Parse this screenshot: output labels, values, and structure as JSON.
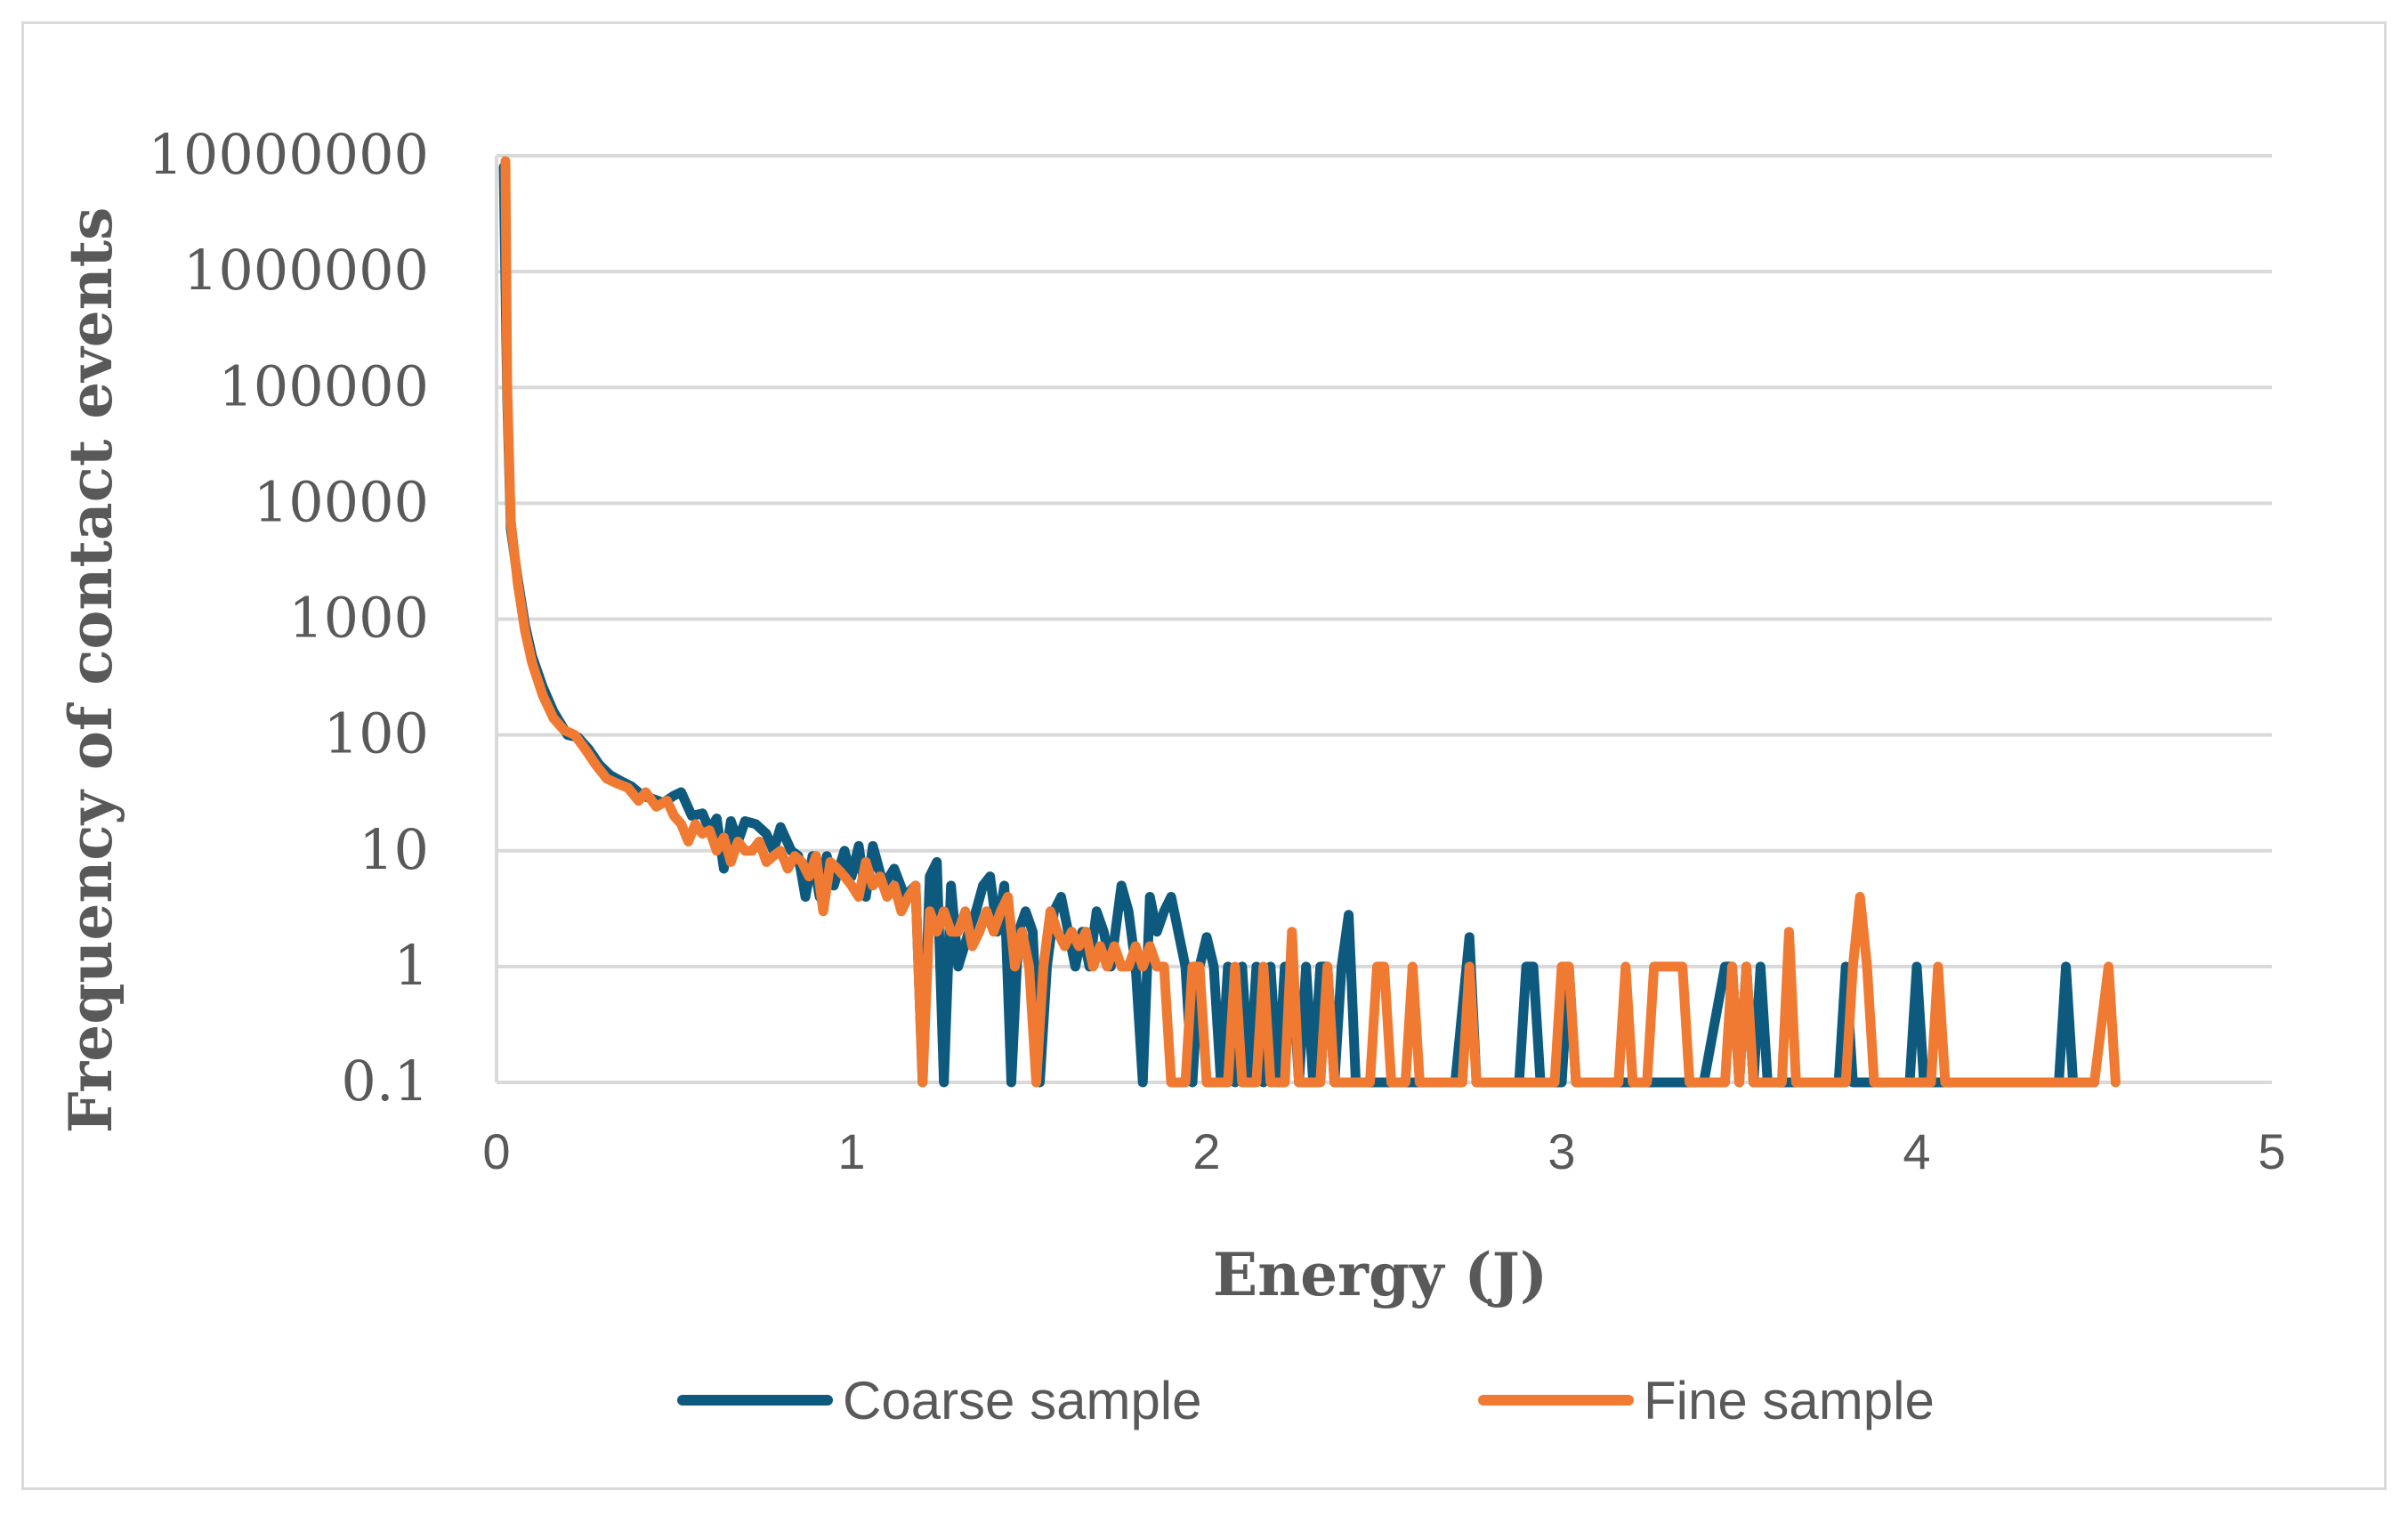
{
  "chart_data": {
    "type": "line",
    "title": "",
    "xlabel": "Energy (J)",
    "ylabel": "Frequency of contact events",
    "xlim": [
      0,
      5
    ],
    "ylim": [
      0.1,
      10000000
    ],
    "yscale": "log",
    "grid": true,
    "legend_position": "bottom",
    "x_ticks": [
      "0",
      "1",
      "2",
      "3",
      "4",
      "5"
    ],
    "x_tick_values": [
      0,
      1,
      2,
      3,
      4,
      5
    ],
    "y_ticks": [
      "0.1",
      "1",
      "10",
      "100",
      "1000",
      "10000",
      "100000",
      "1000000",
      "10000000"
    ],
    "y_tick_values": [
      0.1,
      1,
      10,
      100,
      1000,
      10000,
      100000,
      1000000,
      10000000
    ],
    "colors": {
      "coarse": "#0e5a7e",
      "fine": "#f07a32",
      "grid": "#d9d9d9",
      "text": "#595959"
    },
    "series": [
      {
        "name": "Coarse sample",
        "color": "#0e5a7e",
        "points": [
          [
            0.02,
            8000000
          ],
          [
            0.03,
            80000
          ],
          [
            0.04,
            6000
          ],
          [
            0.06,
            2200
          ],
          [
            0.08,
            900
          ],
          [
            0.1,
            480
          ],
          [
            0.13,
            260
          ],
          [
            0.16,
            160
          ],
          [
            0.2,
            100
          ],
          [
            0.23,
            95
          ],
          [
            0.26,
            75
          ],
          [
            0.29,
            55
          ],
          [
            0.32,
            45
          ],
          [
            0.35,
            40
          ],
          [
            0.38,
            36
          ],
          [
            0.41,
            30
          ],
          [
            0.44,
            28
          ],
          [
            0.47,
            26
          ],
          [
            0.5,
            30
          ],
          [
            0.52,
            32
          ],
          [
            0.55,
            20
          ],
          [
            0.58,
            21
          ],
          [
            0.6,
            15
          ],
          [
            0.62,
            19
          ],
          [
            0.64,
            7
          ],
          [
            0.66,
            18
          ],
          [
            0.68,
            12
          ],
          [
            0.7,
            18
          ],
          [
            0.73,
            17
          ],
          [
            0.76,
            14
          ],
          [
            0.78,
            10
          ],
          [
            0.8,
            16
          ],
          [
            0.83,
            10
          ],
          [
            0.85,
            9
          ],
          [
            0.87,
            4
          ],
          [
            0.89,
            9
          ],
          [
            0.91,
            4
          ],
          [
            0.93,
            9
          ],
          [
            0.95,
            5
          ],
          [
            0.98,
            10
          ],
          [
            1.0,
            6
          ],
          [
            1.02,
            11
          ],
          [
            1.04,
            4
          ],
          [
            1.06,
            11
          ],
          [
            1.09,
            5
          ],
          [
            1.12,
            7
          ],
          [
            1.15,
            4
          ],
          [
            1.18,
            5
          ],
          [
            1.2,
            0.1
          ],
          [
            1.22,
            6
          ],
          [
            1.24,
            8
          ],
          [
            1.26,
            0.1
          ],
          [
            1.28,
            5
          ],
          [
            1.3,
            1
          ],
          [
            1.33,
            2
          ],
          [
            1.35,
            3
          ],
          [
            1.37,
            5
          ],
          [
            1.39,
            6
          ],
          [
            1.41,
            2
          ],
          [
            1.43,
            5
          ],
          [
            1.45,
            0.1
          ],
          [
            1.47,
            2
          ],
          [
            1.49,
            3
          ],
          [
            1.51,
            2
          ],
          [
            1.53,
            0.1
          ],
          [
            1.55,
            1
          ],
          [
            1.57,
            3
          ],
          [
            1.59,
            4
          ],
          [
            1.61,
            2
          ],
          [
            1.63,
            1
          ],
          [
            1.65,
            2
          ],
          [
            1.67,
            1
          ],
          [
            1.69,
            3
          ],
          [
            1.71,
            2
          ],
          [
            1.73,
            1
          ],
          [
            1.76,
            5
          ],
          [
            1.78,
            3
          ],
          [
            1.8,
            1
          ],
          [
            1.82,
            0.1
          ],
          [
            1.84,
            4
          ],
          [
            1.86,
            2
          ],
          [
            1.88,
            3
          ],
          [
            1.9,
            4
          ],
          [
            1.92,
            2
          ],
          [
            1.94,
            1
          ],
          [
            1.96,
            0.1
          ],
          [
            1.98,
            1
          ],
          [
            2.0,
            1.8
          ],
          [
            2.02,
            1
          ],
          [
            2.04,
            0.1
          ],
          [
            2.06,
            1
          ],
          [
            2.08,
            0.1
          ],
          [
            2.1,
            1
          ],
          [
            2.12,
            0.1
          ],
          [
            2.14,
            1
          ],
          [
            2.16,
            0.1
          ],
          [
            2.18,
            1
          ],
          [
            2.2,
            0.1
          ],
          [
            2.22,
            1
          ],
          [
            2.24,
            1
          ],
          [
            2.26,
            0.1
          ],
          [
            2.28,
            1
          ],
          [
            2.3,
            0.1
          ],
          [
            2.32,
            1
          ],
          [
            2.34,
            1
          ],
          [
            2.36,
            0.1
          ],
          [
            2.38,
            1
          ],
          [
            2.4,
            2.8
          ],
          [
            2.42,
            0.1
          ],
          [
            2.5,
            0.1
          ],
          [
            2.52,
            0.1
          ],
          [
            2.7,
            0.1
          ],
          [
            2.74,
            1.8
          ],
          [
            2.76,
            0.1
          ],
          [
            2.88,
            0.1
          ],
          [
            2.9,
            1
          ],
          [
            2.92,
            1
          ],
          [
            2.94,
            0.1
          ],
          [
            3.0,
            0.1
          ],
          [
            3.02,
            1
          ],
          [
            3.04,
            0.1
          ],
          [
            3.18,
            0.1
          ],
          [
            3.2,
            0.1
          ],
          [
            3.4,
            0.1
          ],
          [
            3.46,
            1
          ],
          [
            3.48,
            1
          ],
          [
            3.5,
            0.1
          ],
          [
            3.52,
            1
          ],
          [
            3.54,
            0.1
          ],
          [
            3.56,
            1
          ],
          [
            3.58,
            0.1
          ],
          [
            3.78,
            0.1
          ],
          [
            3.8,
            1
          ],
          [
            3.82,
            0.1
          ],
          [
            3.84,
            0.1
          ],
          [
            3.98,
            0.1
          ],
          [
            4.0,
            1
          ],
          [
            4.02,
            0.1
          ],
          [
            4.4,
            0.1
          ],
          [
            4.42,
            1
          ],
          [
            4.44,
            0.1
          ],
          [
            4.5,
            0.1
          ]
        ]
      },
      {
        "name": "Fine sample",
        "color": "#f07a32",
        "points": [
          [
            0.025,
            9000000
          ],
          [
            0.03,
            100000
          ],
          [
            0.04,
            7000
          ],
          [
            0.06,
            2000
          ],
          [
            0.08,
            800
          ],
          [
            0.1,
            420
          ],
          [
            0.13,
            220
          ],
          [
            0.16,
            140
          ],
          [
            0.19,
            110
          ],
          [
            0.22,
            100
          ],
          [
            0.25,
            75
          ],
          [
            0.28,
            55
          ],
          [
            0.31,
            42
          ],
          [
            0.34,
            38
          ],
          [
            0.37,
            35
          ],
          [
            0.4,
            27
          ],
          [
            0.42,
            32
          ],
          [
            0.45,
            24
          ],
          [
            0.48,
            27
          ],
          [
            0.5,
            20
          ],
          [
            0.52,
            17
          ],
          [
            0.54,
            12
          ],
          [
            0.56,
            17
          ],
          [
            0.58,
            14
          ],
          [
            0.6,
            15
          ],
          [
            0.62,
            10
          ],
          [
            0.64,
            13
          ],
          [
            0.66,
            8
          ],
          [
            0.68,
            12
          ],
          [
            0.7,
            10
          ],
          [
            0.72,
            10
          ],
          [
            0.74,
            12
          ],
          [
            0.76,
            8
          ],
          [
            0.78,
            9
          ],
          [
            0.8,
            10
          ],
          [
            0.82,
            7
          ],
          [
            0.84,
            9
          ],
          [
            0.86,
            8
          ],
          [
            0.88,
            6
          ],
          [
            0.9,
            9
          ],
          [
            0.92,
            3
          ],
          [
            0.94,
            8
          ],
          [
            0.96,
            7
          ],
          [
            0.98,
            6
          ],
          [
            1.0,
            5
          ],
          [
            1.02,
            4
          ],
          [
            1.04,
            8
          ],
          [
            1.06,
            5
          ],
          [
            1.08,
            6
          ],
          [
            1.1,
            4
          ],
          [
            1.12,
            5
          ],
          [
            1.14,
            3
          ],
          [
            1.16,
            4
          ],
          [
            1.18,
            5
          ],
          [
            1.2,
            0.1
          ],
          [
            1.22,
            3
          ],
          [
            1.24,
            2
          ],
          [
            1.26,
            3
          ],
          [
            1.28,
            2
          ],
          [
            1.3,
            2
          ],
          [
            1.32,
            3
          ],
          [
            1.34,
            1.5
          ],
          [
            1.36,
            2
          ],
          [
            1.38,
            3
          ],
          [
            1.4,
            2
          ],
          [
            1.42,
            3
          ],
          [
            1.44,
            4
          ],
          [
            1.46,
            1
          ],
          [
            1.48,
            2
          ],
          [
            1.5,
            1
          ],
          [
            1.52,
            0.1
          ],
          [
            1.54,
            1
          ],
          [
            1.56,
            3
          ],
          [
            1.58,
            2
          ],
          [
            1.6,
            1.5
          ],
          [
            1.62,
            2
          ],
          [
            1.64,
            1.5
          ],
          [
            1.66,
            2
          ],
          [
            1.68,
            1
          ],
          [
            1.7,
            1.5
          ],
          [
            1.72,
            1
          ],
          [
            1.74,
            1.5
          ],
          [
            1.76,
            1
          ],
          [
            1.78,
            1
          ],
          [
            1.8,
            1.5
          ],
          [
            1.82,
            1
          ],
          [
            1.84,
            1.5
          ],
          [
            1.86,
            1
          ],
          [
            1.88,
            1
          ],
          [
            1.9,
            0.1
          ],
          [
            1.94,
            0.1
          ],
          [
            1.96,
            1
          ],
          [
            1.98,
            1
          ],
          [
            2.0,
            0.1
          ],
          [
            2.06,
            0.1
          ],
          [
            2.08,
            1
          ],
          [
            2.1,
            0.1
          ],
          [
            2.14,
            0.1
          ],
          [
            2.16,
            1
          ],
          [
            2.18,
            0.1
          ],
          [
            2.22,
            0.1
          ],
          [
            2.24,
            2
          ],
          [
            2.26,
            0.1
          ],
          [
            2.32,
            0.1
          ],
          [
            2.34,
            1
          ],
          [
            2.36,
            0.1
          ],
          [
            2.46,
            0.1
          ],
          [
            2.48,
            1
          ],
          [
            2.5,
            1
          ],
          [
            2.52,
            0.1
          ],
          [
            2.56,
            0.1
          ],
          [
            2.58,
            1
          ],
          [
            2.6,
            0.1
          ],
          [
            2.72,
            0.1
          ],
          [
            2.74,
            1
          ],
          [
            2.76,
            0.1
          ],
          [
            2.98,
            0.1
          ],
          [
            3.0,
            1
          ],
          [
            3.02,
            1
          ],
          [
            3.04,
            0.1
          ],
          [
            3.16,
            0.1
          ],
          [
            3.18,
            1
          ],
          [
            3.2,
            0.1
          ],
          [
            3.24,
            0.1
          ],
          [
            3.26,
            1
          ],
          [
            3.34,
            1
          ],
          [
            3.36,
            0.1
          ],
          [
            3.46,
            0.1
          ],
          [
            3.48,
            1
          ],
          [
            3.5,
            0.1
          ],
          [
            3.52,
            1
          ],
          [
            3.54,
            0.1
          ],
          [
            3.62,
            0.1
          ],
          [
            3.64,
            2
          ],
          [
            3.66,
            0.1
          ],
          [
            3.8,
            0.1
          ],
          [
            3.82,
            1
          ],
          [
            3.84,
            4
          ],
          [
            3.86,
            1
          ],
          [
            3.88,
            0.1
          ],
          [
            4.04,
            0.1
          ],
          [
            4.06,
            1
          ],
          [
            4.08,
            0.1
          ],
          [
            4.5,
            0.1
          ],
          [
            4.54,
            1
          ],
          [
            4.56,
            0.1
          ]
        ]
      }
    ]
  }
}
